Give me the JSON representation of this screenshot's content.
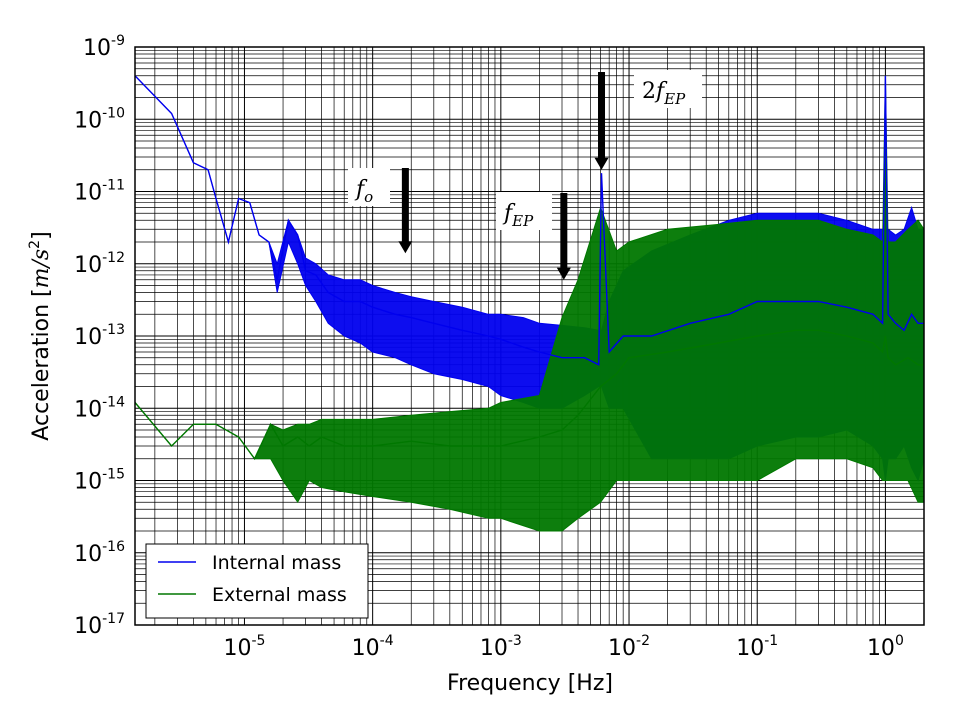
{
  "chart_data": {
    "type": "line",
    "xlabel": "Frequency [Hz]",
    "ylabel": "Acceleration [m/s²]",
    "ylabel_parts": {
      "prefix": "Acceleration [",
      "unit": "m/s",
      "exp": "2",
      "suffix": "]"
    },
    "xscale": "log",
    "yscale": "log",
    "xlim": [
      1.4e-06,
      2.0
    ],
    "ylim": [
      1e-17,
      1e-09
    ],
    "grid": true,
    "x_ticks": [
      {
        "base": "10",
        "exp": "-5",
        "value": 1e-05
      },
      {
        "base": "10",
        "exp": "-4",
        "value": 0.0001
      },
      {
        "base": "10",
        "exp": "-3",
        "value": 0.001
      },
      {
        "base": "10",
        "exp": "-2",
        "value": 0.01
      },
      {
        "base": "10",
        "exp": "-1",
        "value": 0.1
      },
      {
        "base": "10",
        "exp": "0",
        "value": 1
      }
    ],
    "y_ticks": [
      {
        "base": "10",
        "exp": "-9",
        "value": 1e-09
      },
      {
        "base": "10",
        "exp": "-10",
        "value": 1e-10
      },
      {
        "base": "10",
        "exp": "-11",
        "value": 1e-11
      },
      {
        "base": "10",
        "exp": "-12",
        "value": 1e-12
      },
      {
        "base": "10",
        "exp": "-13",
        "value": 1e-13
      },
      {
        "base": "10",
        "exp": "-14",
        "value": 1e-14
      },
      {
        "base": "10",
        "exp": "-15",
        "value": 1e-15
      },
      {
        "base": "10",
        "exp": "-16",
        "value": 1e-16
      },
      {
        "base": "10",
        "exp": "-17",
        "value": 1e-17
      }
    ],
    "legend_position": "bottom-left",
    "series": [
      {
        "name": "Internal mass",
        "color": "#0000ee",
        "x": [
          1.4e-06,
          2.7e-06,
          4e-06,
          5.2e-06,
          6e-06,
          7.5e-06,
          9e-06,
          1.1e-05,
          1.3e-05,
          1.55e-05,
          1.8e-05,
          2.2e-05,
          2.6e-05,
          3e-05,
          3.6e-05,
          4.5e-05,
          6e-05,
          8e-05,
          0.0001,
          0.00015,
          0.0002,
          0.0003,
          0.0005,
          0.0008,
          0.001,
          0.0015,
          0.002,
          0.003,
          0.0045,
          0.0058,
          0.0061,
          0.007,
          0.009,
          0.015,
          0.03,
          0.06,
          0.1,
          0.2,
          0.3,
          0.5,
          0.8,
          0.95,
          1.0,
          1.05,
          1.2,
          1.4,
          1.6,
          1.8,
          2.0
        ],
        "y": [
          4e-10,
          1.2e-10,
          2.5e-11,
          2e-11,
          8e-12,
          2e-12,
          8e-12,
          7e-12,
          2.5e-12,
          2e-12,
          6e-13,
          4e-12,
          2.5e-12,
          8e-13,
          7e-13,
          4e-13,
          3e-13,
          3e-13,
          2.5e-13,
          2e-13,
          1.8e-13,
          1.5e-13,
          1.2e-13,
          1e-13,
          9e-14,
          7e-14,
          6e-14,
          5e-14,
          5e-14,
          4e-14,
          1.8e-11,
          6e-14,
          1e-13,
          1e-13,
          1.5e-13,
          2e-13,
          3e-13,
          3e-13,
          3e-13,
          2.5e-13,
          2e-13,
          1.5e-13,
          4e-10,
          2e-13,
          1.5e-13,
          1.2e-13,
          2e-13,
          1.5e-13,
          1.5e-13
        ],
        "band_low": [
          4e-10,
          1.2e-10,
          2.5e-11,
          2e-11,
          8e-12,
          2e-12,
          8e-12,
          7e-12,
          2.5e-12,
          2e-12,
          4e-13,
          2e-12,
          1e-12,
          5e-13,
          3e-13,
          1.5e-13,
          1e-13,
          8e-14,
          6e-14,
          5e-14,
          4e-14,
          3e-14,
          2.5e-14,
          2e-14,
          1.5e-14,
          1.2e-14,
          1e-14,
          1e-14,
          1.5e-14,
          2e-14,
          2e-14,
          1e-14,
          1e-14,
          2e-15,
          2e-15,
          2e-15,
          3e-15,
          4e-15,
          4e-15,
          5e-15,
          3e-15,
          2e-15,
          1e-15,
          2e-15,
          2e-15,
          3e-15,
          1.5e-15,
          1e-15,
          2e-15
        ],
        "band_high": [
          4e-10,
          1.2e-10,
          2.5e-11,
          2e-11,
          8e-12,
          2e-12,
          8e-12,
          7e-12,
          2.5e-12,
          2e-12,
          1e-12,
          4e-12,
          2.5e-12,
          1.2e-12,
          1e-12,
          7e-13,
          6e-13,
          6e-13,
          5e-13,
          4e-13,
          3.5e-13,
          3e-13,
          2.5e-13,
          2e-13,
          2e-13,
          1.8e-13,
          1.5e-13,
          1.4e-13,
          1.3e-13,
          1.2e-13,
          1.2e-13,
          3e-13,
          8e-13,
          1.5e-12,
          2.5e-12,
          4e-12,
          5e-12,
          5e-12,
          5e-12,
          4e-12,
          3e-12,
          3e-12,
          3e-12,
          3e-12,
          2.5e-12,
          3e-12,
          6e-12,
          3e-12,
          3e-12
        ]
      },
      {
        "name": "External mass",
        "color": "#007700",
        "x": [
          1.4e-06,
          2.7e-06,
          4e-06,
          6e-06,
          9e-06,
          1.2e-05,
          1.6e-05,
          2e-05,
          2.6e-05,
          3.2e-05,
          4e-05,
          6e-05,
          0.0001,
          0.0002,
          0.0004,
          0.0008,
          0.001,
          0.002,
          0.003,
          0.004,
          0.006,
          0.008,
          0.01,
          0.02,
          0.05,
          0.1,
          0.2,
          0.3,
          0.5,
          0.8,
          0.95,
          1.0,
          1.05,
          1.2,
          1.5,
          1.8,
          2.0
        ],
        "y": [
          1.2e-14,
          3e-15,
          6e-15,
          6e-15,
          4e-15,
          2e-15,
          6e-15,
          3e-15,
          4e-15,
          3e-15,
          4e-15,
          3e-15,
          3e-15,
          3.5e-15,
          3e-15,
          3e-15,
          3e-15,
          4e-15,
          5e-15,
          8e-15,
          2e-14,
          3e-14,
          5e-14,
          6e-14,
          8e-14,
          1e-13,
          1.2e-13,
          1.2e-13,
          1e-13,
          8e-14,
          6e-14,
          1e-13,
          5e-14,
          4e-14,
          5e-14,
          4e-14,
          4e-14
        ],
        "band_low": [
          1.2e-14,
          3e-15,
          6e-15,
          6e-15,
          4e-15,
          2e-15,
          2e-15,
          1e-15,
          5e-16,
          1e-15,
          8e-16,
          7e-16,
          6e-16,
          5e-16,
          4e-16,
          3e-16,
          3e-16,
          2e-16,
          2e-16,
          3e-16,
          5e-16,
          1e-15,
          1e-15,
          1e-15,
          1e-15,
          1e-15,
          2e-15,
          2e-15,
          2e-15,
          1.5e-15,
          1e-15,
          1e-15,
          1e-15,
          1e-15,
          1e-15,
          5e-16,
          5e-16
        ],
        "band_high": [
          1.2e-14,
          3e-15,
          6e-15,
          6e-15,
          4e-15,
          2e-15,
          6e-15,
          5e-15,
          6e-15,
          6e-15,
          7e-15,
          7e-15,
          7e-15,
          8e-15,
          9e-15,
          1e-14,
          1.2e-14,
          1.5e-14,
          1.8e-13,
          6e-13,
          6e-12,
          1.5e-12,
          2e-12,
          3e-12,
          3.5e-12,
          4e-12,
          4e-12,
          4e-12,
          3e-12,
          2.5e-12,
          2e-12,
          4e-10,
          2e-12,
          2e-12,
          3e-12,
          4e-12,
          3e-12
        ]
      }
    ],
    "annotations": [
      {
        "label": "f",
        "sub": "o",
        "prefix": "",
        "x": 0.00018,
        "y_arrow_tip": 1.4e-12
      },
      {
        "label": "f",
        "sub": "EP",
        "prefix": "",
        "x": 0.0031,
        "y_arrow_tip": 6e-13
      },
      {
        "label": "f",
        "sub": "EP",
        "prefix": "2",
        "x": 0.0061,
        "y_arrow_tip": 2e-11
      }
    ]
  }
}
